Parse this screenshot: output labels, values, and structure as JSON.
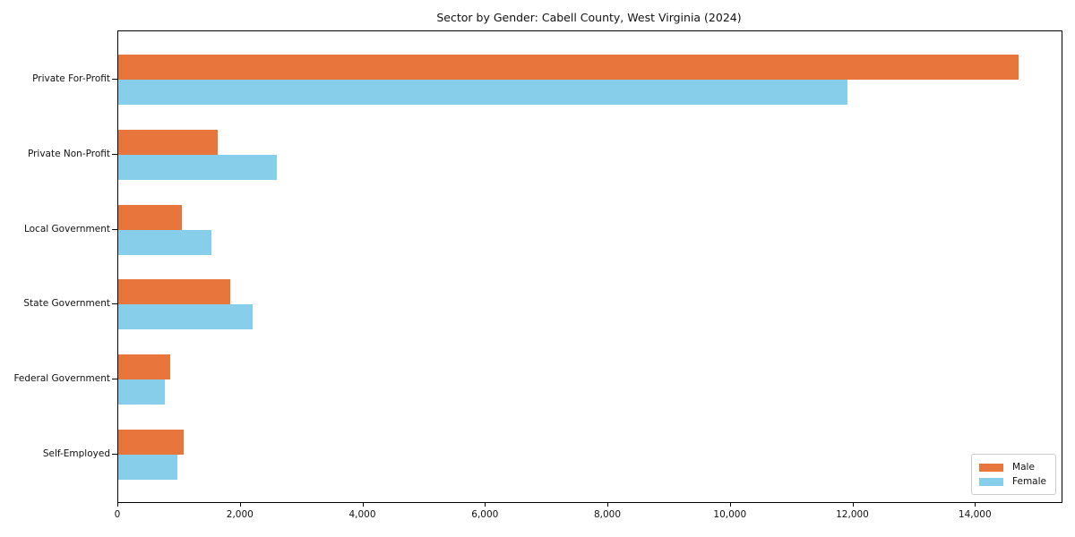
{
  "chart_data": {
    "type": "bar",
    "orientation": "horizontal",
    "title": "Sector by Gender: Cabell County, West Virginia (2024)",
    "categories": [
      "Private For-Profit",
      "Private Non-Profit",
      "Local Government",
      "State Government",
      "Federal Government",
      "Self-Employed"
    ],
    "series": [
      {
        "name": "Male",
        "color": "#e8763c",
        "values": [
          14700,
          1620,
          1040,
          1830,
          850,
          1060
        ]
      },
      {
        "name": "Female",
        "color": "#87ceeb",
        "values": [
          11900,
          2590,
          1520,
          2200,
          760,
          960
        ]
      }
    ],
    "xlabel": "",
    "ylabel": "",
    "xlim": [
      0,
      15400
    ],
    "xticks": [
      0,
      2000,
      4000,
      6000,
      8000,
      10000,
      12000,
      14000
    ],
    "xtick_labels": [
      "0",
      "2,000",
      "4,000",
      "6,000",
      "8,000",
      "10,000",
      "12,000",
      "14,000"
    ],
    "legend": {
      "labels": [
        "Male",
        "Female"
      ],
      "position": "lower right"
    },
    "grid": false,
    "background_color": "#ffffff",
    "spine_color": "#000000"
  }
}
